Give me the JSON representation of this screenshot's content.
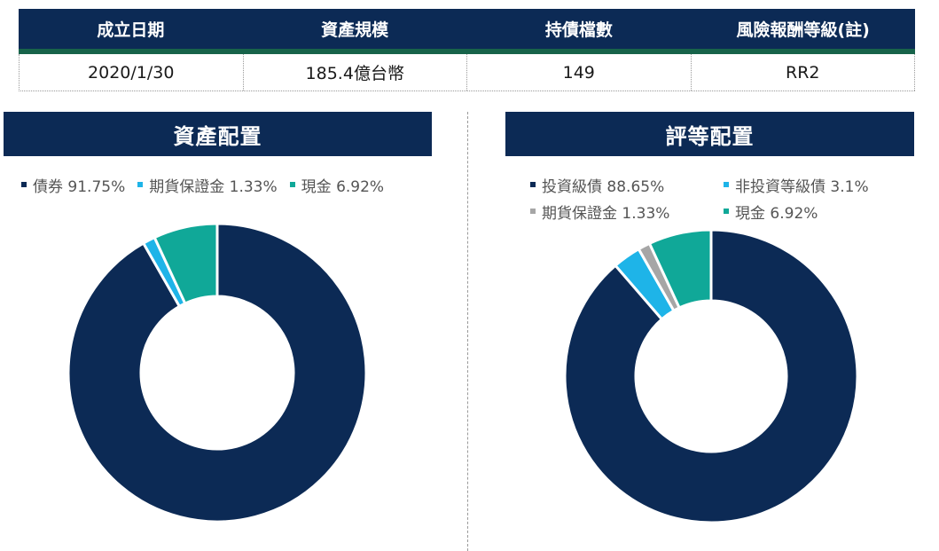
{
  "summary": {
    "headers": [
      "成立日期",
      "資產規模",
      "持債檔數",
      "風險報酬等級(註)"
    ],
    "values": [
      "2020/1/30",
      "185.4億台幣",
      "149",
      "RR2"
    ]
  },
  "colors": {
    "navy": "#0c2a55",
    "stripe_green": "#17634a",
    "light_blue": "#1eb4e8",
    "teal": "#10a898",
    "gray": "#a6a6a6"
  },
  "chart_data": [
    {
      "type": "pie",
      "title": "資產配置",
      "donut": true,
      "legend_position": "top",
      "series": [
        {
          "name": "債券",
          "value": 91.75,
          "label": "91.75%",
          "color": "#0c2a55"
        },
        {
          "name": "期貨保證金",
          "value": 1.33,
          "label": "1.33%",
          "color": "#1eb4e8"
        },
        {
          "name": "現金",
          "value": 6.92,
          "label": "6.92%",
          "color": "#10a898"
        }
      ]
    },
    {
      "type": "pie",
      "title": "評等配置",
      "donut": true,
      "legend_position": "top",
      "series": [
        {
          "name": "投資級債",
          "value": 88.65,
          "label": "88.65%",
          "color": "#0c2a55"
        },
        {
          "name": "非投資等級債",
          "value": 3.1,
          "label": "3.1%",
          "color": "#1eb4e8"
        },
        {
          "name": "期貨保證金",
          "value": 1.33,
          "label": "1.33%",
          "color": "#a6a6a6"
        },
        {
          "name": "現金",
          "value": 6.92,
          "label": "6.92%",
          "color": "#10a898"
        }
      ]
    }
  ]
}
